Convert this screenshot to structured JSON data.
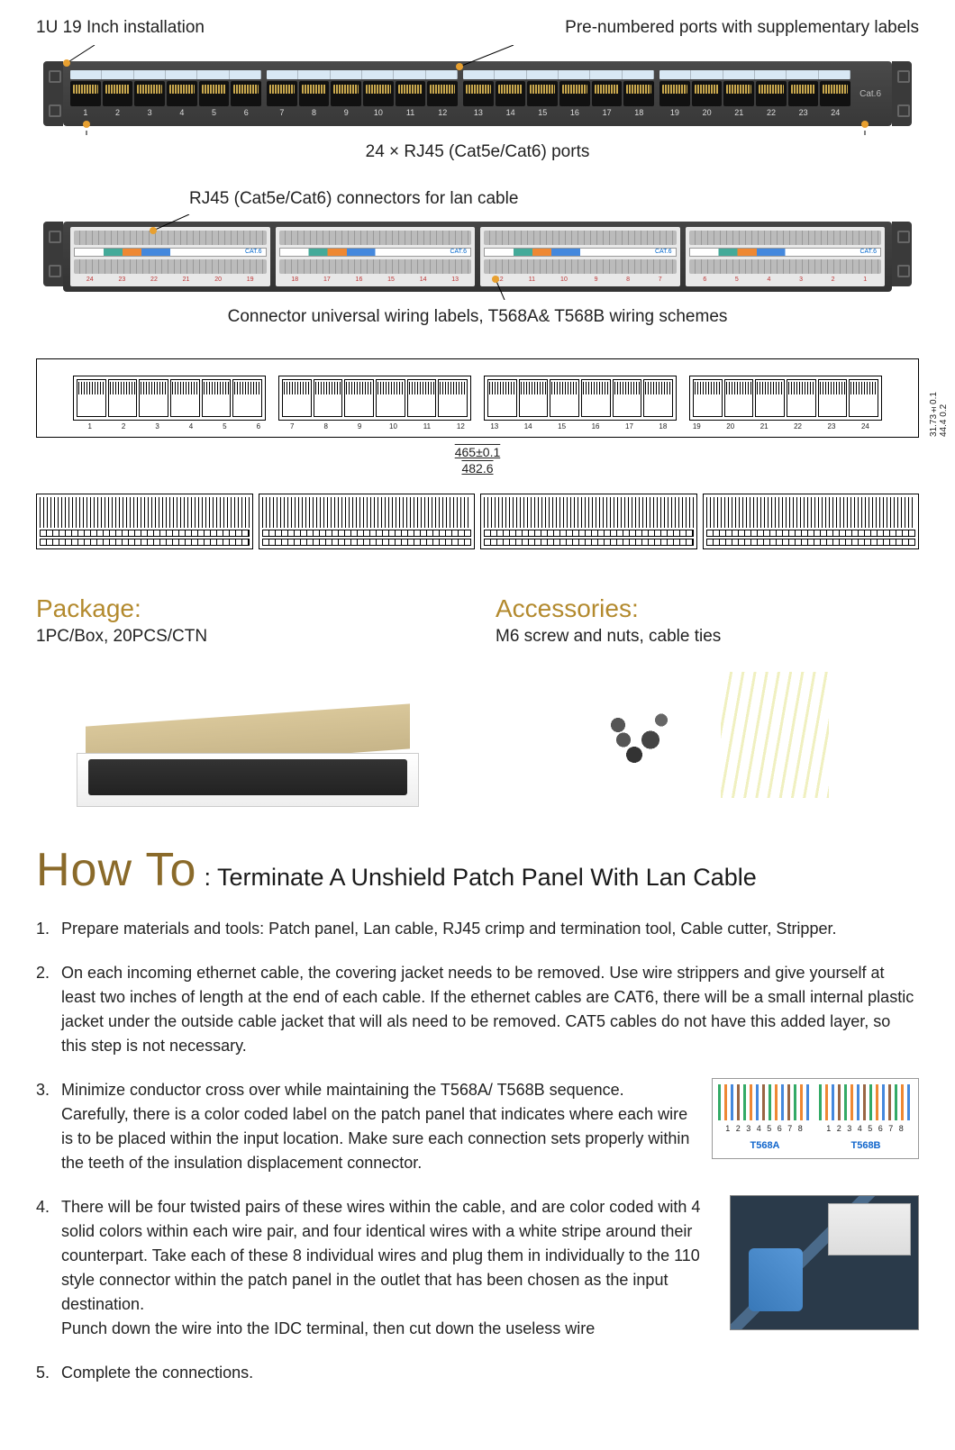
{
  "callouts": {
    "install": "1U 19 Inch installation",
    "prenumbered": "Pre-numbered ports with supplementary labels",
    "ports_caption": "24 × RJ45 (Cat5e/Cat6) ports",
    "rear_connectors": "RJ45 (Cat5e/Cat6) connectors for lan cable",
    "wiring_labels": "Connector universal wiring labels, T568A& T568B wiring schemes",
    "cat6_label": "Cat.6",
    "module_label": "CAT.6"
  },
  "front_port_numbers": [
    "1",
    "2",
    "3",
    "4",
    "5",
    "6",
    "7",
    "8",
    "9",
    "10",
    "11",
    "12",
    "13",
    "14",
    "15",
    "16",
    "17",
    "18",
    "19",
    "20",
    "21",
    "22",
    "23",
    "24"
  ],
  "rear_port_numbers": [
    [
      "24",
      "23",
      "22",
      "21",
      "20",
      "19"
    ],
    [
      "18",
      "17",
      "16",
      "15",
      "14",
      "13"
    ],
    [
      "12",
      "11",
      "10",
      "9",
      "8",
      "7"
    ],
    [
      "6",
      "5",
      "4",
      "3",
      "2",
      "1"
    ]
  ],
  "dimensions": {
    "width_inner": "465±0.1",
    "width_outer": "482.6",
    "height_inner": "31.73±0.1",
    "height_outer": "44.4",
    "tol": "0.2"
  },
  "package": {
    "head": "Package:",
    "text": "1PC/Box, 20PCS/CTN"
  },
  "accessories": {
    "head": "Accessories:",
    "text": "M6 screw and nuts, cable ties"
  },
  "howto": {
    "big": "How To",
    "sub": ": Terminate A Unshield Patch Panel With Lan Cable",
    "steps": [
      "Prepare materials and tools: Patch panel, Lan cable, RJ45 crimp and termination tool, Cable cutter, Stripper.",
      "On each incoming ethernet cable, the covering jacket needs to be removed. Use wire strippers and give yourself at least two inches of length at the end of each cable.  If the ethernet cables are CAT6, there will be a small internal plastic jacket under the outside cable jacket that will als need to be removed. CAT5 cables do not have this added layer, so this step is not necessary.",
      "Minimize conductor cross over while maintaining the T568A/ T568B sequence. Carefully, there is a color coded label on the patch panel that indicates where each wire is to be placed within the input location.  Make sure each connection sets properly within the teeth of the insulation displacement connector.",
      "There will be four twisted pairs of these wires within the cable, and are color coded with 4 solid colors within each wire pair, and four identical wires with a white stripe around their counterpart.  Take each of these 8 individual wires and plug them in individually to the 110 style connector within the patch panel in the outlet that has been chosen as the input destination.\nPunch down the wire into the IDC terminal, then cut down the useless wire",
      "Complete the connections."
    ]
  },
  "wiring": {
    "pins": "1 2 3 4 5 6 7 8",
    "a": "T568A",
    "b": "T568B"
  },
  "colors": {
    "accent": "#b38a2e",
    "howto_accent": "#8a6a2a",
    "panel_dark": "#383838",
    "label_blue": "#1166cc"
  }
}
